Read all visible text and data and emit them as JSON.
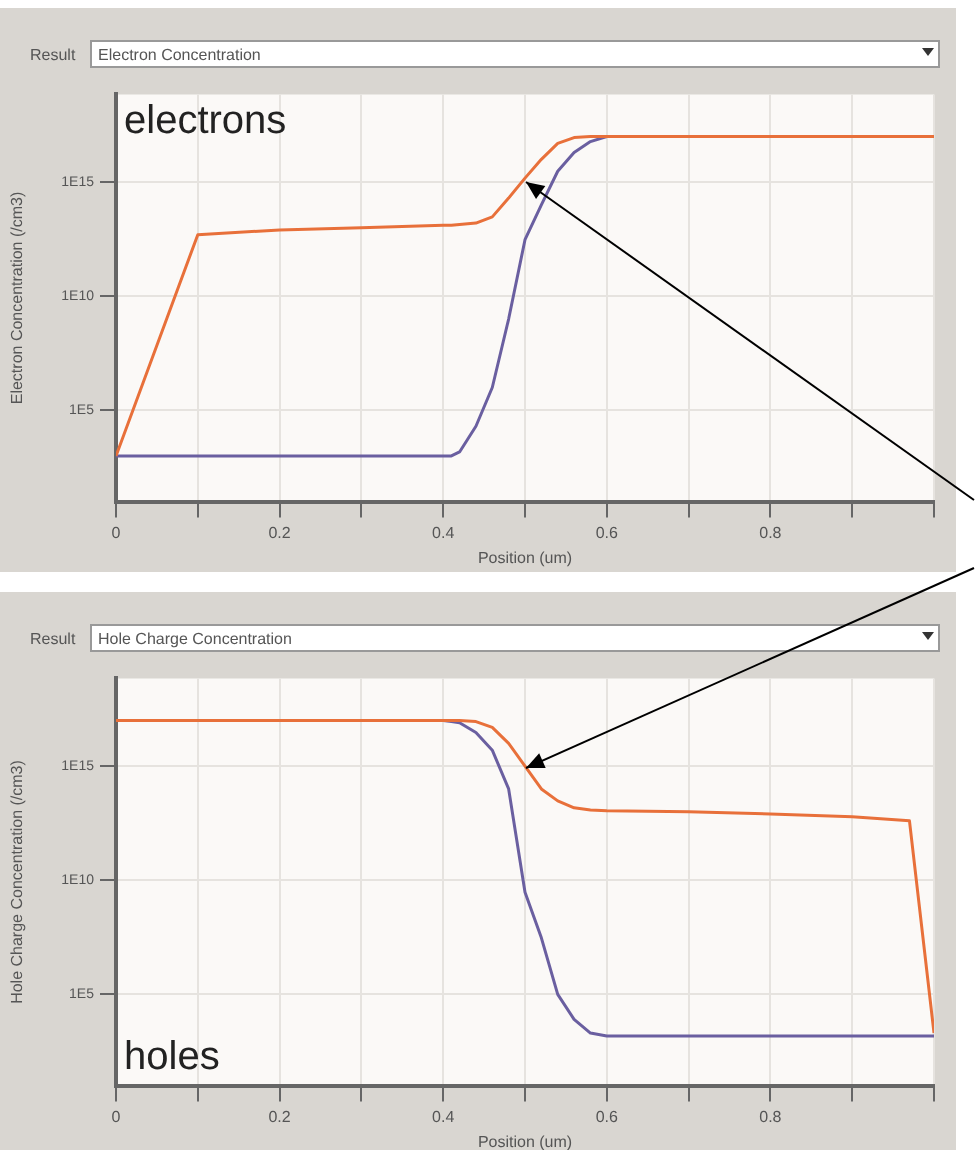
{
  "chart_data": [
    {
      "type": "line",
      "title": "Electron Concentration",
      "xlabel": "Position (um)",
      "ylabel": "Electron Concentration (/cm3)",
      "annotations": [
        "Result",
        "electrons"
      ],
      "x": [
        0,
        0.1,
        0.2,
        0.3,
        0.4,
        0.41,
        0.42,
        0.44,
        0.46,
        0.48,
        0.5,
        0.52,
        0.54,
        0.56,
        0.58,
        0.6,
        0.7,
        0.8,
        0.9,
        0.97,
        1.0
      ],
      "series": [
        {
          "color": "#e8703a",
          "values": [
            1000.0,
            5000000000000.0,
            8000000000000.0,
            10000000000000.0,
            13000000000000.0,
            13000000000000.0,
            14000000000000.0,
            16000000000000.0,
            30000000000000.0,
            200000000000000.0,
            1500000000000000.0,
            1e+16,
            5e+16,
            9e+16,
            1e+17,
            1e+17,
            1e+17,
            1e+17,
            1e+17,
            1e+17,
            1e+17
          ]
        },
        {
          "color": "#6a5fa0",
          "values": [
            1000.0,
            1000.0,
            1000.0,
            1000.0,
            1000.0,
            1000.0,
            1500.0,
            20000.0,
            1000000.0,
            1000000000.0,
            3000000000000.0,
            100000000000000.0,
            3000000000000000.0,
            2e+16,
            6e+16,
            1e+17,
            null,
            null,
            null,
            null,
            null
          ]
        }
      ],
      "xlim": [
        0,
        1.0
      ],
      "xticks": [
        0,
        {
          "value": 0.1,
          "label": null
        },
        0.2,
        {
          "value": 0.3,
          "label": null
        },
        0.4,
        {
          "value": 0.5,
          "label": null
        },
        0.6,
        {
          "value": 0.7,
          "label": null
        },
        0.8,
        {
          "value": 0.9,
          "label": null
        },
        {
          "value": 1.0,
          "label": null
        }
      ],
      "ylim": [
        10,
        7e+18
      ],
      "yticks": [
        {
          "value": 100000.0,
          "label": "1E5"
        },
        {
          "value": 10000000000.0,
          "label": "1E10"
        },
        {
          "value": 1000000000000000.0,
          "label": "1E15"
        }
      ],
      "log": "y",
      "grid": true,
      "legend": false,
      "marker": "none",
      "line_style": "solid"
    },
    {
      "type": "line",
      "title": "Hole Charge Concentration",
      "xlabel": "Position (um)",
      "ylabel": "Hole Charge Concentration (/cm3)",
      "annotations": [
        "Result",
        "holes"
      ],
      "x": [
        0,
        0.1,
        0.2,
        0.3,
        0.4,
        0.41,
        0.42,
        0.44,
        0.46,
        0.48,
        0.5,
        0.52,
        0.54,
        0.56,
        0.58,
        0.6,
        0.7,
        0.8,
        0.9,
        0.97,
        1.0
      ],
      "series": [
        {
          "color": "#e8703a",
          "values": [
            1e+17,
            1e+17,
            1e+17,
            1e+17,
            1e+17,
            1e+17,
            1e+17,
            9e+16,
            5e+16,
            1e+16,
            1000000000000000.0,
            100000000000000.0,
            30000000000000.0,
            15000000000000.0,
            12000000000000.0,
            11000000000000.0,
            10000000000000.0,
            8000000000000.0,
            6000000000000.0,
            4000000000000.0,
            2000.0
          ]
        },
        {
          "color": "#6a5fa0",
          "values": [
            null,
            null,
            null,
            null,
            1e+17,
            9e+16,
            8e+16,
            3e+16,
            5000000000000000.0,
            100000000000000.0,
            3000000000.0,
            30000000.0,
            100000.0,
            8000.0,
            2000.0,
            1500.0,
            1500.0,
            1500.0,
            1500.0,
            1500.0,
            1500.0
          ]
        }
      ],
      "xlim": [
        0,
        1.0
      ],
      "xticks": [
        0,
        {
          "value": 0.1,
          "label": null
        },
        0.2,
        {
          "value": 0.3,
          "label": null
        },
        0.4,
        {
          "value": 0.5,
          "label": null
        },
        0.6,
        {
          "value": 0.7,
          "label": null
        },
        0.8,
        {
          "value": 0.9,
          "label": null
        },
        {
          "value": 1.0,
          "label": null
        }
      ],
      "ylim": [
        10,
        7e+18
      ],
      "yticks": [
        {
          "value": 100000.0,
          "label": "1E5"
        },
        {
          "value": 10000000000.0,
          "label": "1E10"
        },
        {
          "value": 1000000000000000.0,
          "label": "1E15"
        }
      ],
      "log": "y",
      "grid": true,
      "legend": false,
      "marker": "none",
      "line_style": "solid"
    }
  ]
}
